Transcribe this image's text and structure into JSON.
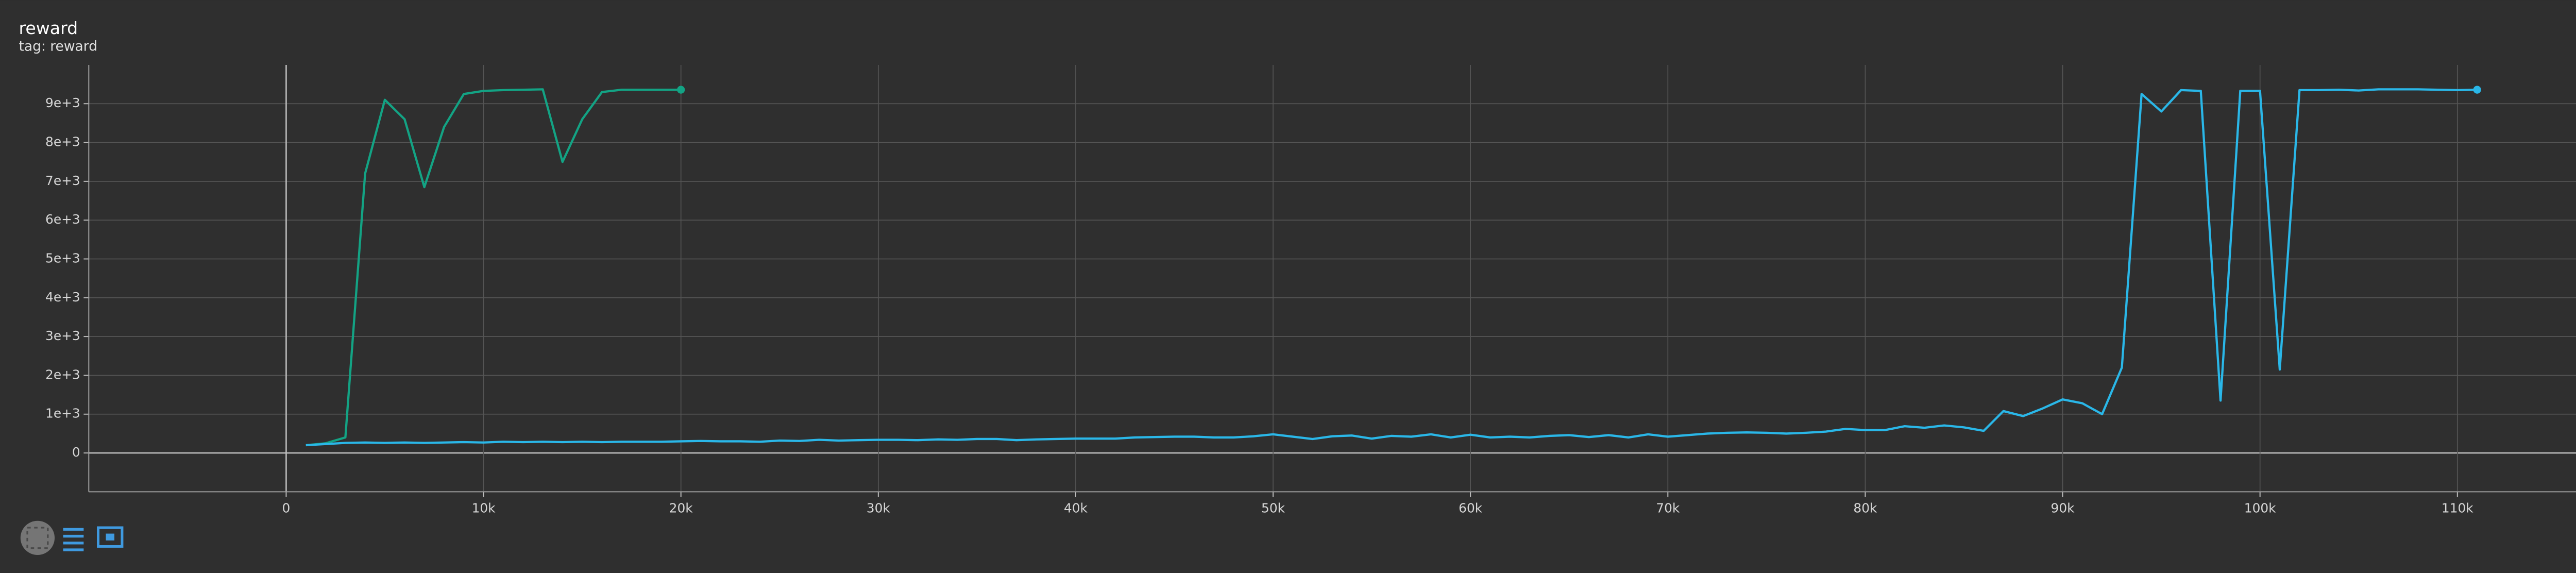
{
  "chart_data": {
    "type": "line",
    "title": "reward",
    "subtitle": "tag: reward",
    "xlim": [
      -10000,
      120000
    ],
    "xticks": [
      0,
      {
        "value": 10000,
        "label": "10k"
      },
      {
        "value": 20000,
        "label": "20k"
      },
      {
        "value": 30000,
        "label": "30k"
      },
      {
        "value": 40000,
        "label": "40k"
      },
      {
        "value": 50000,
        "label": "50k"
      },
      {
        "value": 60000,
        "label": "60k"
      },
      {
        "value": 70000,
        "label": "70k"
      },
      {
        "value": 80000,
        "label": "80k"
      },
      {
        "value": 90000,
        "label": "90k"
      },
      {
        "value": 100000,
        "label": "100k"
      },
      {
        "value": 110000,
        "label": "110k"
      }
    ],
    "ylim": [
      -1000,
      10000
    ],
    "yticks": [
      0,
      {
        "value": 1000,
        "label": "1e+3"
      },
      {
        "value": 2000,
        "label": "2e+3"
      },
      {
        "value": 3000,
        "label": "3e+3"
      },
      {
        "value": 4000,
        "label": "4e+3"
      },
      {
        "value": 5000,
        "label": "5e+3"
      },
      {
        "value": 6000,
        "label": "6e+3"
      },
      {
        "value": 7000,
        "label": "7e+3"
      },
      {
        "value": 8000,
        "label": "8e+3"
      },
      {
        "value": 9000,
        "label": "9e+3"
      }
    ],
    "grid": true,
    "series": [
      {
        "color": "#13a384",
        "x": [
          1000,
          2000,
          3000,
          4000,
          5000,
          6000,
          7000,
          8000,
          9000,
          10000,
          11000,
          12000,
          13000,
          14000,
          15000,
          16000,
          17000,
          18000,
          19000,
          20000
        ],
        "values": [
          200,
          250,
          400,
          7200,
          9100,
          8600,
          6850,
          8400,
          9250,
          9330,
          9350,
          9360,
          9370,
          7500,
          8600,
          9300,
          9360,
          9360,
          9360,
          9360
        ]
      },
      {
        "color": "#2ab7e8",
        "x": [
          1000,
          2000,
          3000,
          4000,
          5000,
          6000,
          7000,
          8000,
          9000,
          10000,
          11000,
          12000,
          13000,
          14000,
          15000,
          16000,
          17000,
          18000,
          19000,
          20000,
          21000,
          22000,
          23000,
          24000,
          25000,
          26000,
          27000,
          28000,
          29000,
          30000,
          31000,
          32000,
          33000,
          34000,
          35000,
          36000,
          37000,
          38000,
          39000,
          40000,
          41000,
          42000,
          43000,
          44000,
          45000,
          46000,
          47000,
          48000,
          49000,
          50000,
          51000,
          52000,
          53000,
          54000,
          55000,
          56000,
          57000,
          58000,
          59000,
          60000,
          61000,
          62000,
          63000,
          64000,
          65000,
          66000,
          67000,
          68000,
          69000,
          70000,
          71000,
          72000,
          73000,
          74000,
          75000,
          76000,
          77000,
          78000,
          79000,
          80000,
          81000,
          82000,
          83000,
          84000,
          85000,
          86000,
          87000,
          88000,
          89000,
          90000,
          91000,
          92000,
          93000,
          94000,
          95000,
          96000,
          97000,
          98000,
          99000,
          100000,
          101000,
          102000,
          103000,
          104000,
          105000,
          106000,
          107000,
          108000,
          109000,
          110000,
          111000
        ],
        "values": [
          200,
          230,
          260,
          270,
          260,
          270,
          260,
          270,
          280,
          270,
          290,
          280,
          290,
          280,
          290,
          280,
          290,
          290,
          290,
          300,
          310,
          300,
          300,
          290,
          320,
          310,
          340,
          320,
          330,
          340,
          340,
          330,
          350,
          340,
          360,
          360,
          330,
          350,
          360,
          370,
          370,
          370,
          400,
          410,
          420,
          420,
          400,
          400,
          430,
          480,
          420,
          360,
          430,
          450,
          370,
          440,
          420,
          480,
          400,
          470,
          400,
          420,
          400,
          440,
          460,
          410,
          460,
          400,
          480,
          420,
          460,
          500,
          520,
          530,
          520,
          500,
          520,
          550,
          620,
          590,
          590,
          690,
          650,
          710,
          660,
          570,
          1080,
          950,
          1150,
          1380,
          1280,
          1000,
          2200,
          9250,
          8800,
          9350,
          9330,
          1350,
          9330,
          9330,
          2150,
          9350,
          9350,
          9360,
          9340,
          9370,
          9370,
          9370,
          9360,
          9350,
          9360
        ]
      }
    ]
  }
}
